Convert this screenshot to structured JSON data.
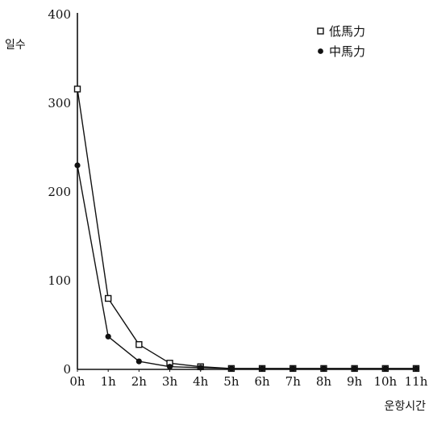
{
  "chart_data": {
    "type": "line",
    "title": "",
    "xlabel": "운항시간",
    "ylabel": "일수",
    "categories": [
      "0h",
      "1h",
      "2h",
      "3h",
      "4h",
      "5h",
      "6h",
      "7h",
      "8h",
      "9h",
      "10h",
      "11h"
    ],
    "ylim": [
      0,
      400
    ],
    "yticks": [
      0,
      100,
      200,
      300,
      400
    ],
    "grid": false,
    "legend_position": "top-right",
    "series": [
      {
        "name": "低馬力",
        "marker": "square-open",
        "values": [
          316,
          80,
          28,
          7,
          3,
          1,
          1,
          1,
          1,
          1,
          1,
          1
        ]
      },
      {
        "name": "中馬力",
        "marker": "circle-filled",
        "values": [
          230,
          37,
          9,
          3,
          2,
          1,
          1,
          1,
          1,
          1,
          1,
          1
        ]
      }
    ],
    "colors": {
      "line": "#111111",
      "background": "#ffffff"
    }
  }
}
